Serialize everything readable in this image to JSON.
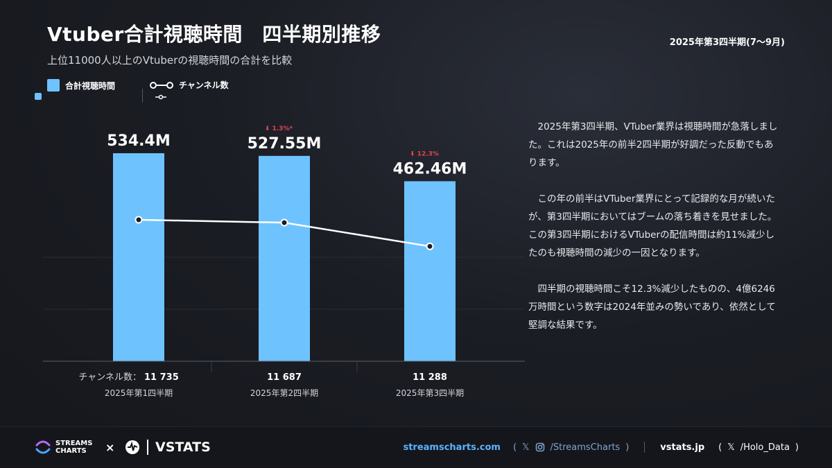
{
  "title": "Vtuber合計視聴時間　四半期別推移",
  "subtitle": "上位11000人以上のVtuberの視聴時間の合計を比較",
  "period": "2025年第3四半期(7〜9月)",
  "legend": {
    "bars": "合計視聴時間",
    "line": "チャンネル数"
  },
  "colors": {
    "bar": "#6ec3ff",
    "line": "#ffffff",
    "change": "#e8414f",
    "link": "#5ab4ff"
  },
  "chart_data": {
    "type": "bar",
    "categories": [
      "2025年第1四半期",
      "2025年第2四半期",
      "2025年第3四半期"
    ],
    "series": [
      {
        "name": "合計視聴時間",
        "values": [
          534.4,
          527.55,
          462.46
        ],
        "labels": [
          "534.4M",
          "527.55M",
          "462.46M"
        ],
        "changes": [
          "",
          "⬇ 1.3%*",
          "⬇ 12.3%"
        ]
      },
      {
        "name": "チャンネル数",
        "type": "line",
        "values": [
          11735,
          11687,
          11288
        ],
        "labels": [
          "11 735",
          "11 687",
          "11 288"
        ]
      }
    ],
    "channel_prefix": "チャンネル数：",
    "ylim": [
      0,
      600
    ]
  },
  "description": [
    "2025年第3四半期、VTuber業界は視聴時間が急落しました。これは2025年の前半2四半期が好調だった反動でもあります。",
    "この年の前半はVTuber業界にとって記録的な月が続いたが、第3四半期においてはブームの落ち着きを見せました。この第3四半期におけるVTuberの配信時間は約11%減少したのも視聴時間の減少の一因となります。",
    "四半期の視聴時間こそ12.3%減少したものの、4億6246万時間という数字は2024年並みの勢いであり、依然として堅調な結果です。"
  ],
  "footer": {
    "sc_logo_line1": "STREAMS",
    "sc_logo_line2": "CHARTS",
    "times": "×",
    "vstats": "VSTATS",
    "site1": "streamscharts.com",
    "handle1": "/StreamsCharts",
    "site2": "vstats.jp",
    "handle2": "/Holo_Data",
    "open": "(",
    "close": ")",
    "x_icon": "𝕏"
  }
}
